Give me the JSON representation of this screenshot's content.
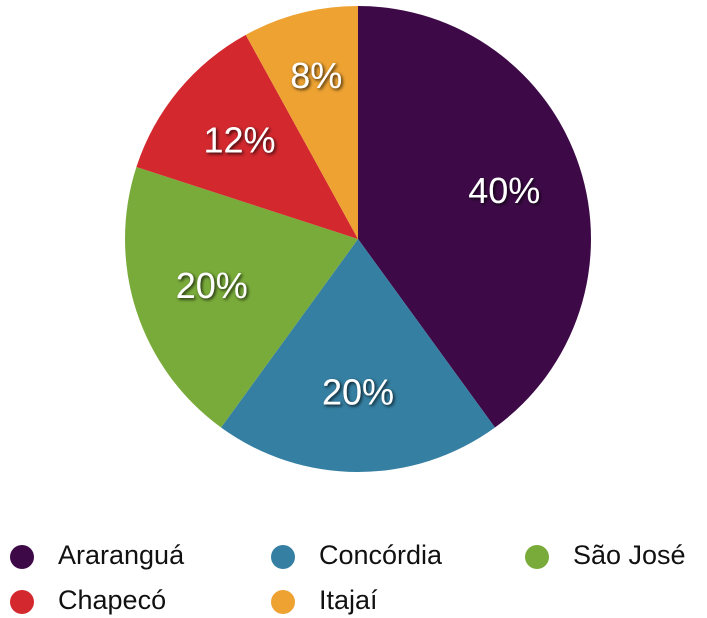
{
  "chart_data": {
    "type": "pie",
    "categories": [
      "Araranguá",
      "Concórdia",
      "São José",
      "Chapecó",
      "Itajaí"
    ],
    "values": [
      40,
      20,
      20,
      12,
      8
    ],
    "value_labels": [
      "40%",
      "20%",
      "20%",
      "12%",
      "8%"
    ],
    "colors": [
      "#3d0a47",
      "#357fa2",
      "#79ab3a",
      "#d2282e",
      "#eda232"
    ],
    "legend": "bottom"
  }
}
